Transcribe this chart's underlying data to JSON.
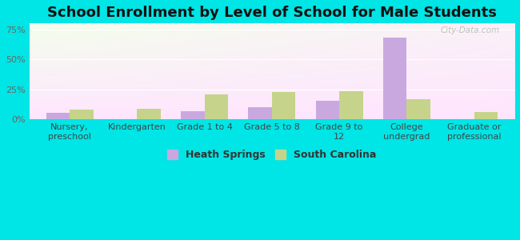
{
  "title": "School Enrollment by Level of School for Male Students",
  "categories": [
    "Nursery,\npreschool",
    "Kindergarten",
    "Grade 1 to 4",
    "Grade 5 to 8",
    "Grade 9 to\n12",
    "College\nundergrad",
    "Graduate or\nprofessional"
  ],
  "heath_springs": [
    5.3,
    0.0,
    7.1,
    10.3,
    15.2,
    68.0,
    0.0
  ],
  "south_carolina": [
    8.2,
    9.1,
    20.5,
    22.5,
    23.5,
    17.0,
    6.2
  ],
  "heath_springs_color": "#c9a8e0",
  "south_carolina_color": "#c5d48a",
  "background_color": "#00e5e5",
  "ylim": [
    0,
    80
  ],
  "yticks": [
    0,
    25,
    50,
    75
  ],
  "ytick_labels": [
    "0%",
    "25%",
    "50%",
    "75%"
  ],
  "title_fontsize": 13,
  "tick_fontsize": 8,
  "legend_fontsize": 9,
  "bar_width": 0.35,
  "watermark": "City-Data.com"
}
